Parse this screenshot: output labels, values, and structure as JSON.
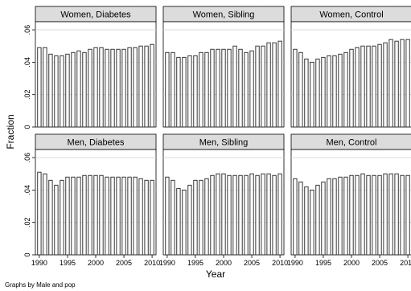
{
  "chart_data": {
    "type": "bar",
    "ylabel": "Fraction",
    "xlabel": "Year",
    "note": "Graphs by Male and pop",
    "ylim": [
      0,
      0.065
    ],
    "yticks": [
      0,
      0.02,
      0.04,
      0.06
    ],
    "ytick_labels": [
      "0",
      ".02",
      ".04",
      ".06"
    ],
    "xticks": [
      1990,
      1995,
      2000,
      2005,
      2010
    ],
    "xtick_labels": [
      "1990",
      "1995",
      "2000",
      "2005",
      "2010"
    ],
    "grid": true,
    "years": [
      1990,
      1991,
      1992,
      1993,
      1994,
      1995,
      1996,
      1997,
      1998,
      1999,
      2000,
      2001,
      2002,
      2003,
      2004,
      2005,
      2006,
      2007,
      2008,
      2009,
      2010
    ],
    "panels": [
      {
        "title": "Women, Diabetes",
        "values": [
          0.049,
          0.049,
          0.045,
          0.044,
          0.044,
          0.045,
          0.046,
          0.047,
          0.046,
          0.048,
          0.049,
          0.049,
          0.048,
          0.048,
          0.048,
          0.048,
          0.049,
          0.049,
          0.05,
          0.05,
          0.051
        ]
      },
      {
        "title": "Women, Sibling",
        "values": [
          0.046,
          0.046,
          0.043,
          0.043,
          0.044,
          0.044,
          0.046,
          0.046,
          0.048,
          0.048,
          0.048,
          0.048,
          0.05,
          0.048,
          0.046,
          0.047,
          0.05,
          0.05,
          0.052,
          0.052,
          0.053
        ]
      },
      {
        "title": "Women, Control",
        "values": [
          0.048,
          0.046,
          0.042,
          0.04,
          0.042,
          0.043,
          0.044,
          0.044,
          0.045,
          0.046,
          0.048,
          0.049,
          0.05,
          0.05,
          0.05,
          0.051,
          0.052,
          0.054,
          0.053,
          0.054,
          0.054
        ]
      },
      {
        "title": "Men, Diabetes",
        "values": [
          0.051,
          0.05,
          0.046,
          0.043,
          0.046,
          0.048,
          0.048,
          0.048,
          0.049,
          0.049,
          0.049,
          0.049,
          0.048,
          0.048,
          0.048,
          0.048,
          0.048,
          0.048,
          0.047,
          0.046,
          0.046
        ]
      },
      {
        "title": "Men, Sibling",
        "values": [
          0.048,
          0.046,
          0.041,
          0.04,
          0.043,
          0.046,
          0.046,
          0.047,
          0.049,
          0.05,
          0.05,
          0.049,
          0.049,
          0.049,
          0.049,
          0.05,
          0.049,
          0.05,
          0.05,
          0.049,
          0.05
        ]
      },
      {
        "title": "Men, Control",
        "values": [
          0.047,
          0.045,
          0.042,
          0.04,
          0.043,
          0.045,
          0.047,
          0.047,
          0.048,
          0.048,
          0.049,
          0.049,
          0.05,
          0.049,
          0.049,
          0.049,
          0.05,
          0.05,
          0.05,
          0.049,
          0.049
        ]
      }
    ]
  }
}
